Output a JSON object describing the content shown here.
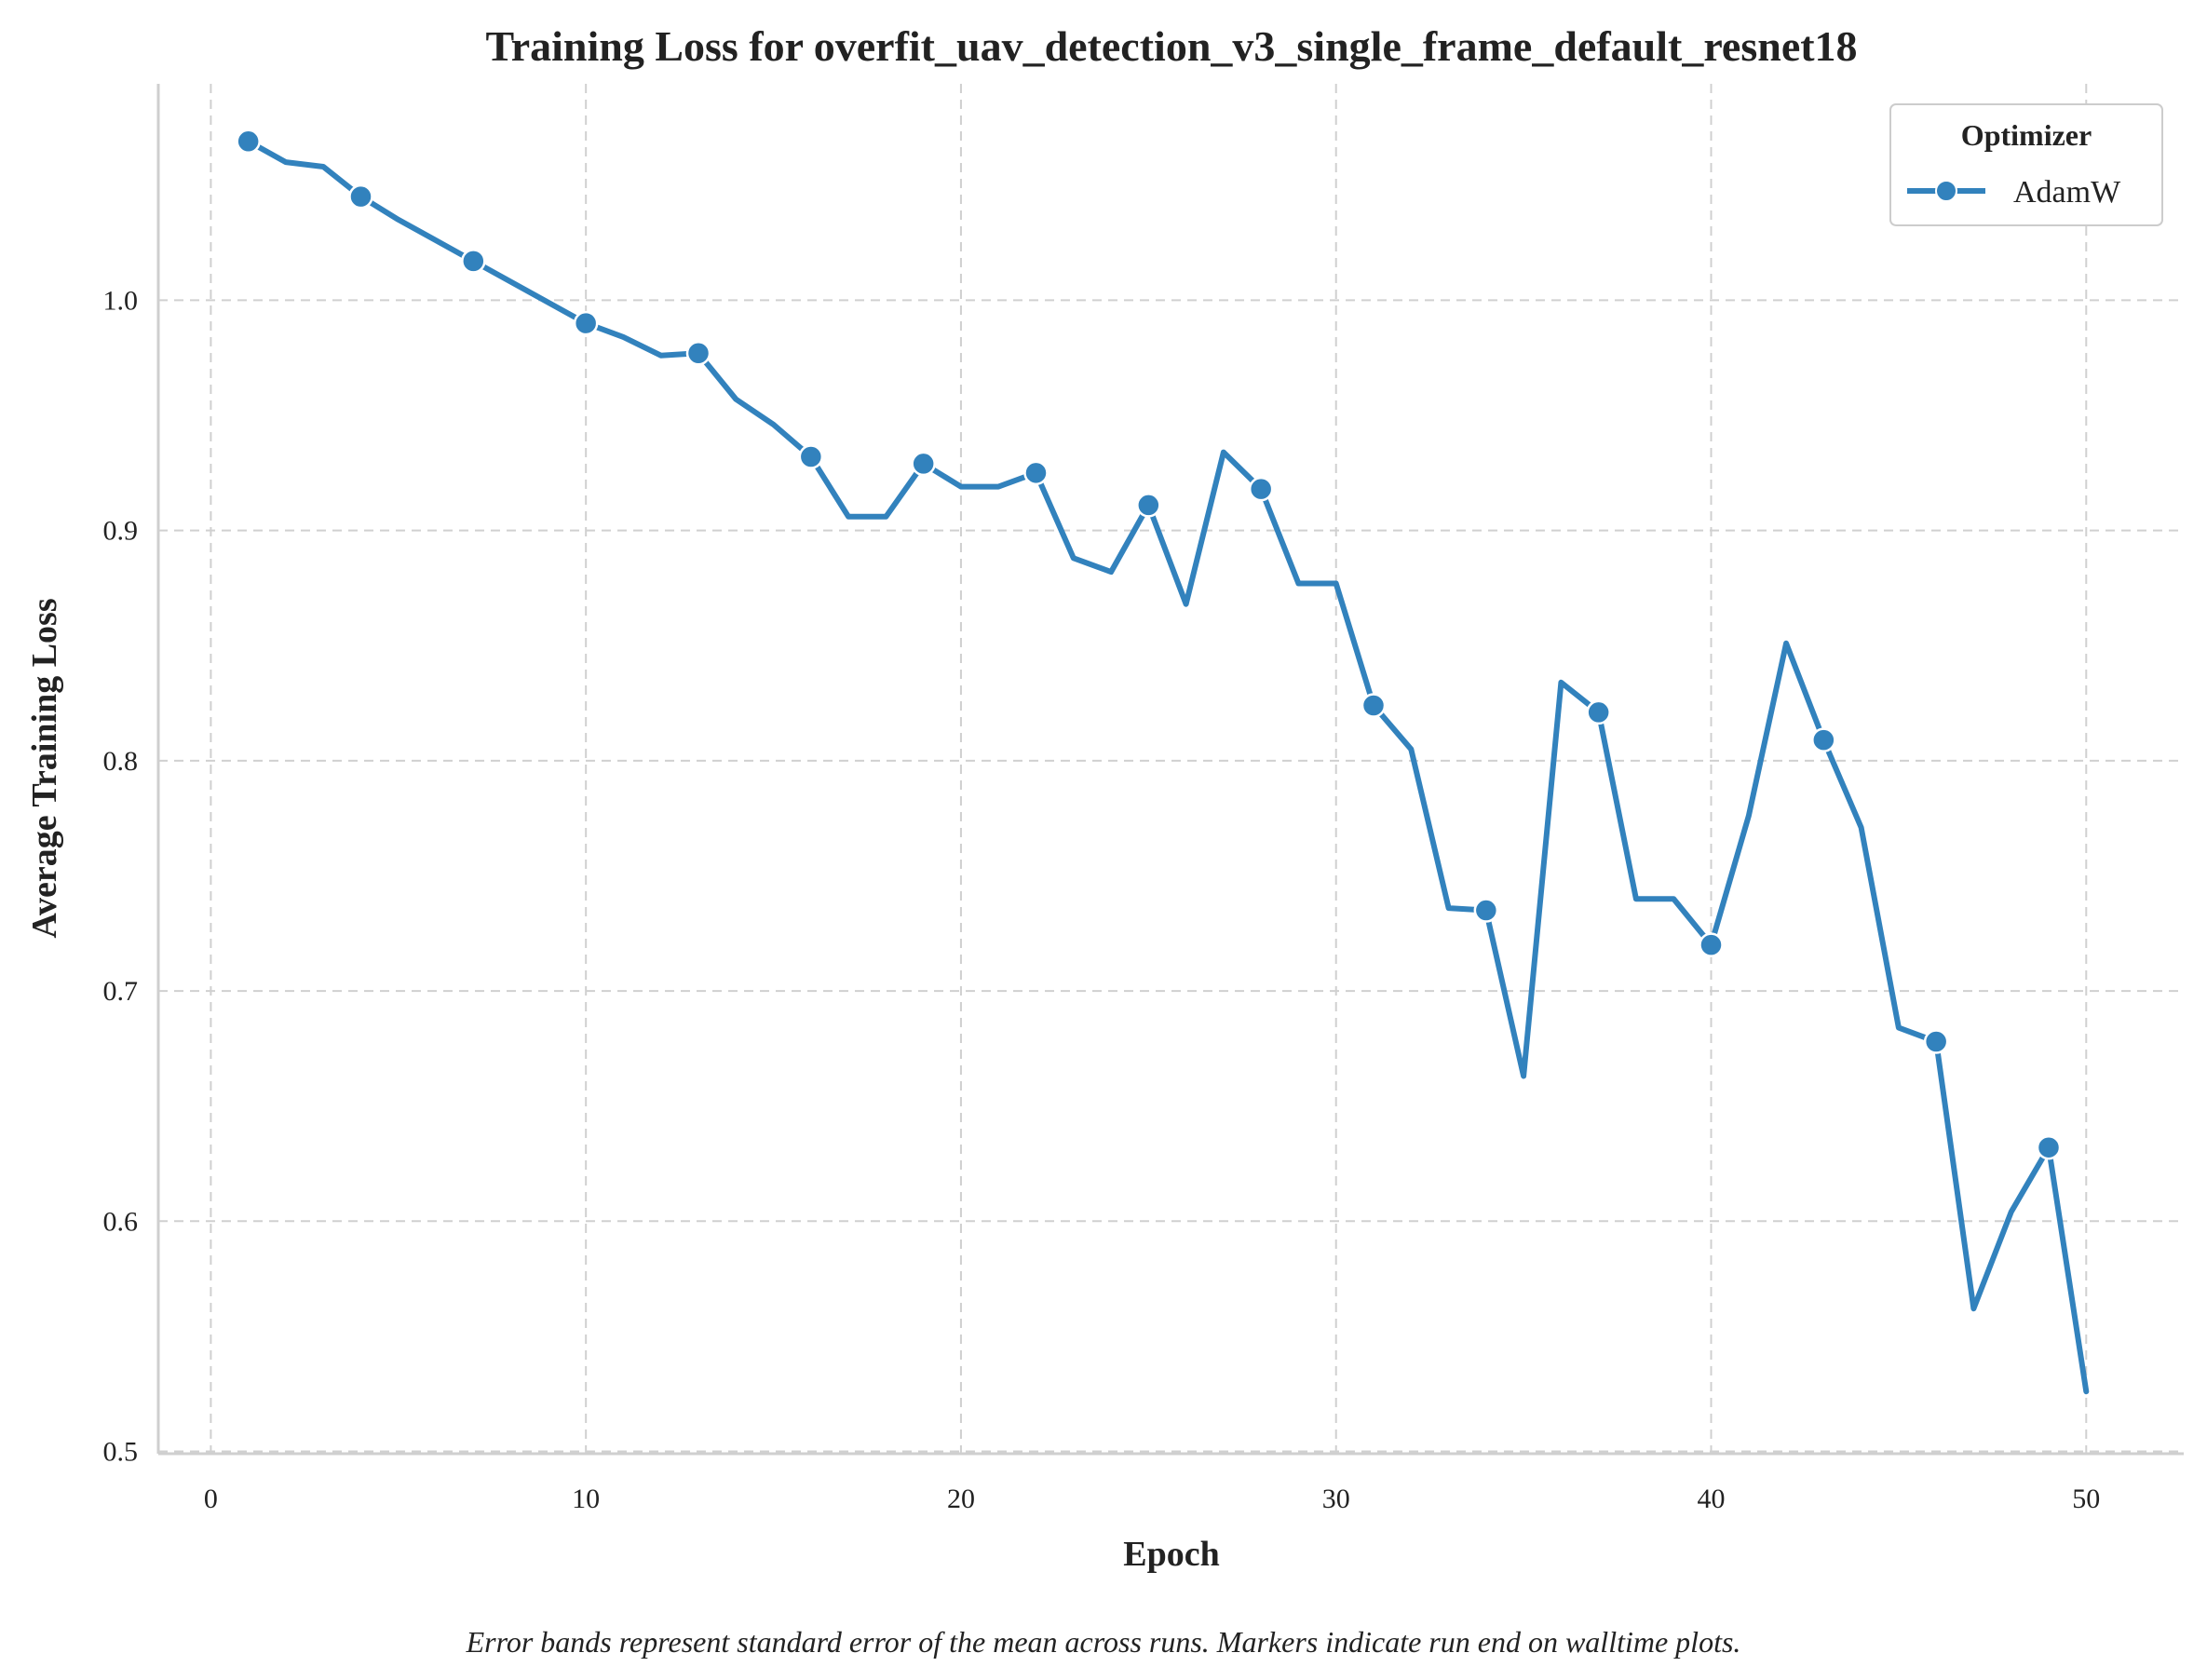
{
  "chart_data": {
    "type": "line",
    "title": "Training Loss for overfit_uav_detection_v3_single_frame_default_resnet18",
    "xlabel": "Epoch",
    "ylabel": "Average Training Loss",
    "xlim": [
      -1.4,
      52.6
    ],
    "ylim": [
      0.499,
      1.094
    ],
    "xticks": [
      0,
      10,
      20,
      30,
      40,
      50
    ],
    "yticks": [
      0.5,
      0.6,
      0.7,
      0.8,
      0.9,
      1.0
    ],
    "xtick_labels": [
      "0",
      "10",
      "20",
      "30",
      "40",
      "50"
    ],
    "ytick_labels": [
      "0.5",
      "0.6",
      "0.7",
      "0.8",
      "0.9",
      "1.0"
    ],
    "grid": true,
    "legend": {
      "title": "Optimizer",
      "placement": "top-right"
    },
    "series": [
      {
        "name": "AdamW",
        "color": "#3282bd",
        "marker_every": 3,
        "marker_start_epoch": 1,
        "x": [
          1,
          2,
          3,
          4,
          5,
          6,
          7,
          8,
          9,
          10,
          11,
          12,
          13,
          14,
          15,
          16,
          17,
          18,
          19,
          20,
          21,
          22,
          23,
          24,
          25,
          26,
          27,
          28,
          29,
          30,
          31,
          32,
          33,
          34,
          35,
          36,
          37,
          38,
          39,
          40,
          41,
          42,
          43,
          44,
          45,
          46,
          47,
          48,
          49,
          50
        ],
        "y": [
          1.069,
          1.06,
          1.058,
          1.045,
          1.035,
          1.026,
          1.017,
          1.008,
          0.999,
          0.99,
          0.984,
          0.976,
          0.977,
          0.957,
          0.946,
          0.932,
          0.906,
          0.906,
          0.929,
          0.919,
          0.919,
          0.925,
          0.888,
          0.882,
          0.911,
          0.868,
          0.934,
          0.918,
          0.877,
          0.877,
          0.824,
          0.805,
          0.736,
          0.735,
          0.663,
          0.834,
          0.821,
          0.74,
          0.74,
          0.72,
          0.776,
          0.851,
          0.809,
          0.771,
          0.684,
          0.678,
          0.562,
          0.604,
          0.632,
          0.526
        ]
      }
    ]
  },
  "footnote": "Error bands represent standard error of the mean across runs. Markers indicate run end on walltime plots."
}
